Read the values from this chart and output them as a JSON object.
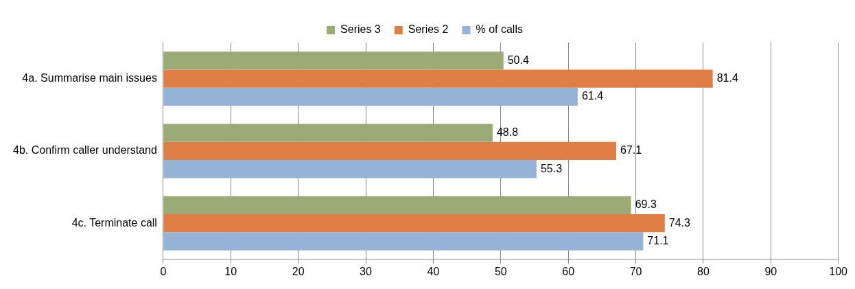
{
  "chart_data": {
    "type": "bar",
    "orientation": "horizontal",
    "categories": [
      "4a. Summarise main issues",
      "4b. Confirm caller understand",
      "4c. Terminate call"
    ],
    "series": [
      {
        "name": "Series 3",
        "color": "#9bab78",
        "values": [
          50.4,
          48.8,
          69.3
        ]
      },
      {
        "name": "Series 2",
        "color": "#e07f45",
        "values": [
          81.4,
          67.1,
          74.3
        ]
      },
      {
        "name": "% of calls",
        "color": "#95b3d7",
        "values": [
          61.4,
          55.3,
          71.1
        ]
      }
    ],
    "xlim": [
      0,
      100
    ],
    "xticks": [
      0,
      10,
      20,
      30,
      40,
      50,
      60,
      70,
      80,
      90,
      100
    ],
    "grid": "x",
    "legend": "top",
    "data_labels": true
  }
}
